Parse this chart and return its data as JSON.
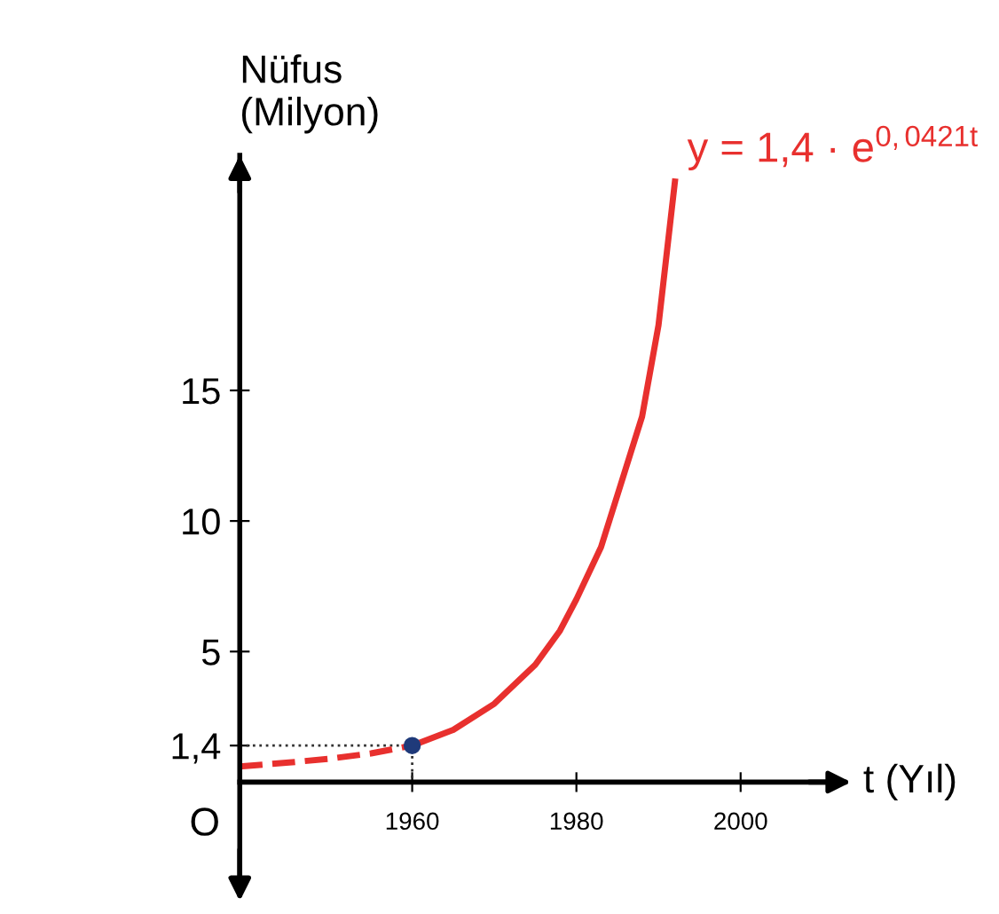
{
  "chart_data": {
    "type": "line",
    "xlabel": "t (Yıl)",
    "ylabel": "Nüfus\n(Milyon)",
    "xlim": [
      1939,
      2012
    ],
    "ylim": [
      -4,
      24
    ],
    "xticks": [
      1960,
      1980,
      2000
    ],
    "yticks": [
      {
        "value": 1.4,
        "label": "1,4"
      },
      5,
      10,
      15
    ],
    "grid": false,
    "series": [
      {
        "line_style": "dotted",
        "color": "#333333",
        "x": [
          1939,
          1960,
          1960
        ],
        "values": [
          1.4,
          1.4,
          0
        ]
      },
      {
        "line_style": "dashed",
        "color": "#e8302e",
        "x": [
          1939,
          1945,
          1950,
          1955,
          1960
        ],
        "values": [
          0.6,
          0.75,
          0.9,
          1.1,
          1.4
        ]
      },
      {
        "line_style": "solid",
        "color": "#e8302e",
        "x": [
          1960,
          1965,
          1970,
          1975,
          1978,
          1980,
          1983,
          1985,
          1988,
          1990,
          1992
        ],
        "values": [
          1.4,
          2.0,
          3.0,
          4.5,
          5.8,
          7.0,
          9.0,
          11.0,
          14.0,
          17.5,
          23.0
        ]
      },
      {
        "type": "scatter",
        "marker": "circle",
        "color": "#1f3a7a",
        "x": [
          1960
        ],
        "values": [
          1.4
        ]
      }
    ],
    "annotations": [
      "O",
      {
        "text": "y = 1,4 · e$^{0,0421t}$",
        "x": 1992,
        "y": 23.0
      }
    ]
  }
}
